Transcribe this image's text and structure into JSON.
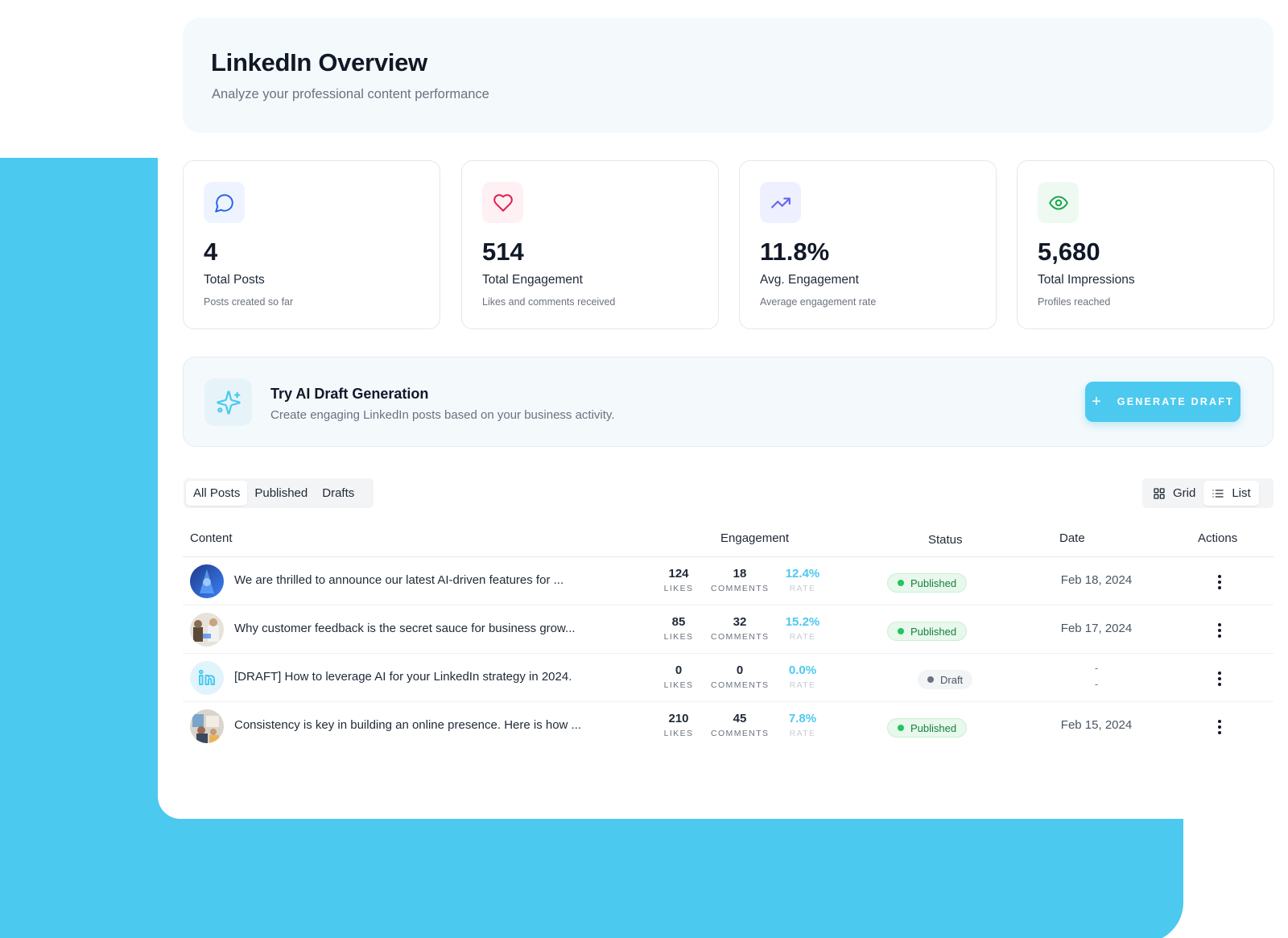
{
  "header": {
    "title": "LinkedIn Overview",
    "subtitle": "Analyze your professional content performance"
  },
  "stats": [
    {
      "icon": "chat-bubble-icon",
      "value": "4",
      "label": "Total Posts",
      "sub": "Posts created so far",
      "color": "#2563eb",
      "bg": "#eef4ff"
    },
    {
      "icon": "heart-icon",
      "value": "514",
      "label": "Total Engagement",
      "sub": "Likes and comments received",
      "color": "#e11d48",
      "bg": "#fff0f3"
    },
    {
      "icon": "trending-up-icon",
      "value": "11.8%",
      "label": "Avg. Engagement",
      "sub": "Average engagement rate",
      "color": "#6366f1",
      "bg": "#eef0ff"
    },
    {
      "icon": "eye-icon",
      "value": "5,680",
      "label": "Total Impressions",
      "sub": "Profiles reached",
      "color": "#16a34a",
      "bg": "#eefaf1"
    }
  ],
  "ai_banner": {
    "title": "Try AI Draft Generation",
    "subtitle": "Create engaging LinkedIn posts based on your business activity.",
    "button_label": "GENERATE DRAFT",
    "accent": "#4cc9ef"
  },
  "filters": {
    "tabs": [
      "All Posts",
      "Published",
      "Drafts"
    ],
    "active_tab": "All Posts"
  },
  "view_toggle": {
    "grid_label": "Grid",
    "list_label": "List",
    "active": "List"
  },
  "table": {
    "columns": {
      "content": "Content",
      "engagement": "Engagement",
      "status": "Status",
      "date": "Date",
      "actions": "Actions"
    },
    "metric_labels": {
      "likes": "LIKES",
      "comments": "COMMENTS",
      "rate": "RATE"
    },
    "rows": [
      {
        "text": "We are thrilled to announce our latest AI-driven features for ...",
        "likes": "124",
        "comments": "18",
        "rate": "12.4%",
        "status": "Published",
        "date": "Feb 18, 2024"
      },
      {
        "text": "Why customer feedback is the secret sauce for business grow...",
        "likes": "85",
        "comments": "32",
        "rate": "15.2%",
        "status": "Published",
        "date": "Feb 17, 2024"
      },
      {
        "text": "[DRAFT] How to leverage AI for your LinkedIn strategy in 2024.",
        "likes": "0",
        "comments": "0",
        "rate": "0.0%",
        "status": "Draft",
        "date": "-",
        "date2": "-"
      },
      {
        "text": "Consistency is key in building an online presence. Here is how ...",
        "likes": "210",
        "comments": "45",
        "rate": "7.8%",
        "status": "Published",
        "date": "Feb 15, 2024"
      }
    ]
  }
}
